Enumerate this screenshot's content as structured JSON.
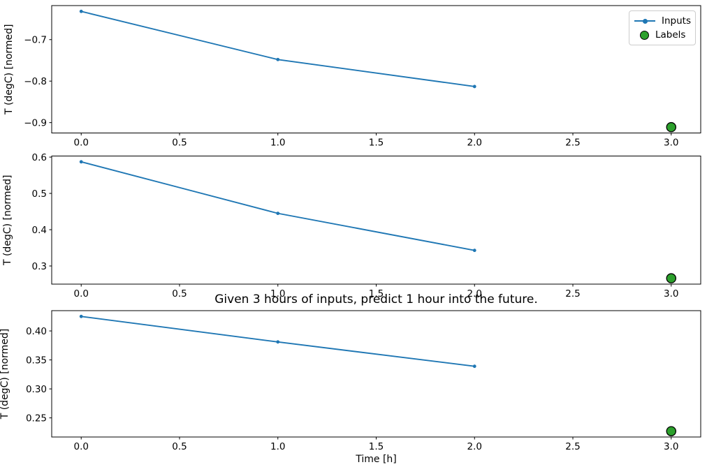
{
  "figure": {
    "background": "#ffffff"
  },
  "legend": {
    "items": [
      {
        "label": "Inputs",
        "marker": "line-with-dot",
        "color": "#1f77b4"
      },
      {
        "label": "Labels",
        "marker": "filled-circle-black-edge",
        "color": "#2ca02c"
      }
    ]
  },
  "chart_data": [
    {
      "type": "line",
      "title": "",
      "xlabel": "",
      "ylabel": "T (degC) [normed]",
      "xlim": [
        -0.15,
        3.15
      ],
      "ylim": [
        -0.925,
        -0.618
      ],
      "xticks": [
        0.0,
        0.5,
        1.0,
        1.5,
        2.0,
        2.5,
        3.0
      ],
      "xticklabels": [
        "0.0",
        "0.5",
        "1.0",
        "1.5",
        "2.0",
        "2.5",
        "3.0"
      ],
      "yticks": [
        -0.7,
        -0.8,
        -0.9
      ],
      "yticklabels": [
        "−0.7",
        "−0.8",
        "−0.9"
      ],
      "grid": false,
      "legend": true,
      "legend_position": "upper right",
      "series": [
        {
          "name": "Inputs",
          "type": "line",
          "marker": "dot",
          "color": "#1f77b4",
          "x": [
            0,
            1,
            2
          ],
          "y": [
            -0.632,
            -0.748,
            -0.813
          ]
        },
        {
          "name": "Labels",
          "type": "scatter",
          "marker": "circle-black-edge",
          "color": "#2ca02c",
          "x": [
            3
          ],
          "y": [
            -0.911
          ]
        }
      ]
    },
    {
      "type": "line",
      "title": "",
      "xlabel": "",
      "ylabel": "T (degC) [normed]",
      "xlim": [
        -0.15,
        3.15
      ],
      "ylim": [
        0.25,
        0.603
      ],
      "xticks": [
        0.0,
        0.5,
        1.0,
        1.5,
        2.0,
        2.5,
        3.0
      ],
      "xticklabels": [
        "0.0",
        "0.5",
        "1.0",
        "1.5",
        "2.0",
        "2.5",
        "3.0"
      ],
      "yticks": [
        0.3,
        0.4,
        0.5,
        0.6
      ],
      "yticklabels": [
        "0.3",
        "0.4",
        "0.5",
        "0.6"
      ],
      "grid": false,
      "legend": false,
      "series": [
        {
          "name": "Inputs",
          "type": "line",
          "marker": "dot",
          "color": "#1f77b4",
          "x": [
            0,
            1,
            2
          ],
          "y": [
            0.587,
            0.445,
            0.343
          ]
        },
        {
          "name": "Labels",
          "type": "scatter",
          "marker": "circle-black-edge",
          "color": "#2ca02c",
          "x": [
            3
          ],
          "y": [
            0.266
          ]
        }
      ]
    },
    {
      "type": "line",
      "title": "Given 3 hours of inputs, predict 1 hour into the future.",
      "xlabel": "Time [h]",
      "ylabel": "T (degC) [normed]",
      "xlim": [
        -0.15,
        3.15
      ],
      "ylim": [
        0.217,
        0.435
      ],
      "xticks": [
        0.0,
        0.5,
        1.0,
        1.5,
        2.0,
        2.5,
        3.0
      ],
      "xticklabels": [
        "0.0",
        "0.5",
        "1.0",
        "1.5",
        "2.0",
        "2.5",
        "3.0"
      ],
      "yticks": [
        0.25,
        0.3,
        0.35,
        0.4
      ],
      "yticklabels": [
        "0.25",
        "0.30",
        "0.35",
        "0.40"
      ],
      "grid": false,
      "legend": false,
      "series": [
        {
          "name": "Inputs",
          "type": "line",
          "marker": "dot",
          "color": "#1f77b4",
          "x": [
            0,
            1,
            2
          ],
          "y": [
            0.425,
            0.381,
            0.339
          ]
        },
        {
          "name": "Labels",
          "type": "scatter",
          "marker": "circle-black-edge",
          "color": "#2ca02c",
          "x": [
            3
          ],
          "y": [
            0.227
          ]
        }
      ]
    }
  ]
}
